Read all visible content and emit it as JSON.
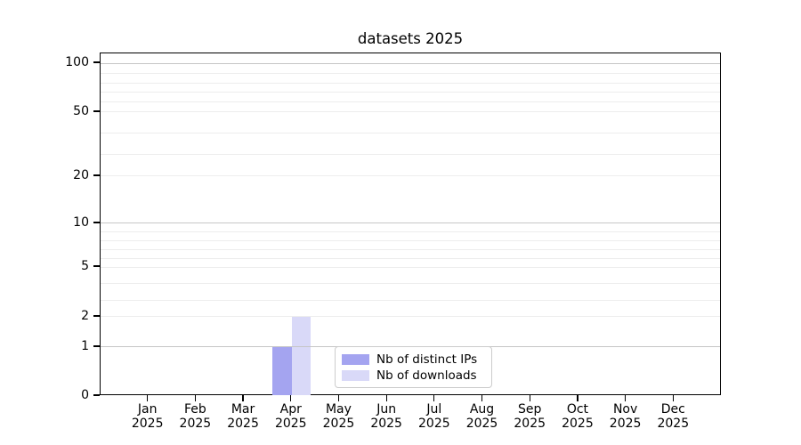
{
  "chart_data": {
    "type": "bar",
    "title": "datasets 2025",
    "categories": [
      "Jan",
      "Feb",
      "Mar",
      "Apr",
      "May",
      "Jun",
      "Jul",
      "Aug",
      "Sep",
      "Oct",
      "Nov",
      "Dec"
    ],
    "category_year": "2025",
    "series": [
      {
        "name": "Nb of distinct IPs",
        "color": "#a4a4f0",
        "values": [
          0,
          0,
          0,
          1,
          0,
          0,
          0,
          0,
          0,
          0,
          0,
          0
        ]
      },
      {
        "name": "Nb of downloads",
        "color": "#d9d9f8",
        "values": [
          0,
          0,
          0,
          2,
          0,
          0,
          0,
          0,
          0,
          0,
          0,
          0
        ]
      }
    ],
    "y_ticks": [
      0,
      1,
      2,
      5,
      10,
      20,
      50,
      100
    ],
    "y_major_grid": [
      1,
      10,
      100
    ],
    "y_minor_grid": [
      2,
      3,
      4,
      5,
      6,
      7,
      8,
      9,
      20,
      30,
      40,
      50,
      60,
      70,
      80,
      90
    ],
    "scale_anchors": [
      [
        0,
        0
      ],
      [
        1,
        0.1429
      ],
      [
        2,
        0.2312
      ],
      [
        5,
        0.3766
      ],
      [
        10,
        0.5039
      ],
      [
        20,
        0.6416
      ],
      [
        50,
        0.8286
      ],
      [
        100,
        0.9714
      ]
    ],
    "ylim": [
      0,
      110
    ],
    "grid": true,
    "legend_position": "lower center",
    "colors": {
      "grid_major": "#c6c6c6",
      "grid_minor": "#ededed",
      "axis": "#000000",
      "background": "#ffffff"
    }
  }
}
